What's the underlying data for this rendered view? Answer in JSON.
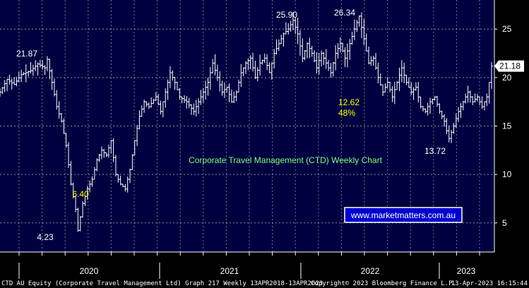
{
  "chart_data": {
    "type": "ohlc",
    "title": "Corporate Travel Management (CTD) Weekly Chart",
    "watermark": "www.marketmatters.com.au",
    "y_ticks": [
      5,
      10,
      15,
      20,
      25
    ],
    "ylim": [
      2.0,
      28.0
    ],
    "x_ticks": [
      "2020",
      "2021",
      "2022",
      "2023"
    ],
    "last_price": "21.18",
    "annotations": [
      {
        "text": "21.87",
        "color": "white",
        "week": 20,
        "value": 21.87
      },
      {
        "text": "4.23",
        "color": "white",
        "week": 102,
        "value": 4.23
      },
      {
        "text": "6.40",
        "color": "yellow",
        "week": 108,
        "value": 6.4
      },
      {
        "text": "25.90",
        "color": "white",
        "week": 154,
        "value": 25.9
      },
      {
        "text": "26.34",
        "color": "white",
        "week": 176,
        "value": 26.34
      },
      {
        "text": "12.62",
        "color": "yellow",
        "week": 187,
        "value": 12.62
      },
      {
        "text": "48%",
        "color": "yellow",
        "week": 187,
        "value": 48
      },
      {
        "text": "13.72",
        "color": "white",
        "week": 213,
        "value": 13.72
      }
    ],
    "anchors": [
      [
        0,
        18.5
      ],
      [
        3,
        19.8
      ],
      [
        6,
        19.3
      ],
      [
        9,
        20.3
      ],
      [
        13,
        20.7
      ],
      [
        16,
        21.4
      ],
      [
        19,
        21.0
      ],
      [
        20,
        21.87
      ],
      [
        22,
        19.5
      ],
      [
        24,
        17.0
      ],
      [
        26,
        15.5
      ],
      [
        28,
        13.0
      ],
      [
        30,
        9.0
      ],
      [
        32,
        6.4
      ],
      [
        33,
        4.23
      ],
      [
        35,
        7.0
      ],
      [
        37,
        8.5
      ],
      [
        39,
        9.5
      ],
      [
        41,
        11.5
      ],
      [
        43,
        12.5
      ],
      [
        45,
        12.0
      ],
      [
        47,
        13.5
      ],
      [
        49,
        10.0
      ],
      [
        51,
        9.0
      ],
      [
        53,
        8.5
      ],
      [
        55,
        10.5
      ],
      [
        57,
        13.5
      ],
      [
        59,
        16.0
      ],
      [
        61,
        17.5
      ],
      [
        63,
        17.0
      ],
      [
        66,
        18.0
      ],
      [
        68,
        16.5
      ],
      [
        70,
        18.5
      ],
      [
        72,
        20.5
      ],
      [
        74,
        19.5
      ],
      [
        76,
        18.0
      ],
      [
        79,
        17.5
      ],
      [
        82,
        16.5
      ],
      [
        85,
        18.0
      ],
      [
        88,
        19.5
      ],
      [
        90,
        21.5
      ],
      [
        92,
        20.0
      ],
      [
        94,
        18.5
      ],
      [
        96,
        19.0
      ],
      [
        98,
        17.5
      ],
      [
        100,
        18.5
      ],
      [
        102,
        20.5
      ],
      [
        104,
        21.5
      ],
      [
        106,
        22.0
      ],
      [
        108,
        20.0
      ],
      [
        110,
        21.5
      ],
      [
        112,
        22.0
      ],
      [
        114,
        20.5
      ],
      [
        116,
        22.5
      ],
      [
        118,
        23.5
      ],
      [
        120,
        24.5
      ],
      [
        122,
        25.0
      ],
      [
        124,
        25.9
      ],
      [
        126,
        24.5
      ],
      [
        128,
        22.0
      ],
      [
        130,
        23.5
      ],
      [
        132,
        22.5
      ],
      [
        134,
        21.0
      ],
      [
        136,
        22.5
      ],
      [
        138,
        21.5
      ],
      [
        140,
        20.5
      ],
      [
        142,
        22.5
      ],
      [
        144,
        23.5
      ],
      [
        146,
        22.0
      ],
      [
        148,
        23.5
      ],
      [
        150,
        25.0
      ],
      [
        152,
        26.34
      ],
      [
        154,
        24.0
      ],
      [
        156,
        21.5
      ],
      [
        158,
        22.0
      ],
      [
        160,
        20.0
      ],
      [
        162,
        18.5
      ],
      [
        164,
        19.5
      ],
      [
        166,
        18.0
      ],
      [
        168,
        19.5
      ],
      [
        170,
        21.0
      ],
      [
        172,
        19.5
      ],
      [
        174,
        18.5
      ],
      [
        176,
        19.0
      ],
      [
        178,
        17.0
      ],
      [
        180,
        16.5
      ],
      [
        182,
        17.5
      ],
      [
        184,
        18.0
      ],
      [
        186,
        16.5
      ],
      [
        188,
        15.5
      ],
      [
        189,
        14.5
      ],
      [
        190,
        13.72
      ],
      [
        192,
        15.0
      ],
      [
        194,
        16.5
      ],
      [
        196,
        17.5
      ],
      [
        198,
        18.5
      ],
      [
        200,
        17.5
      ],
      [
        202,
        18.0
      ],
      [
        204,
        17.0
      ],
      [
        206,
        18.0
      ],
      [
        207,
        19.5
      ],
      [
        208,
        21.18
      ]
    ],
    "footer_left": "CTD AU Equity (Corporate Travel Management Ltd) Graph 217  Weekly 13APR2018-13APR2023",
    "footer_center": "Copyright© 2023 Bloomberg Finance L.P.",
    "footer_right": "13-Apr-2023 16:15:44"
  }
}
